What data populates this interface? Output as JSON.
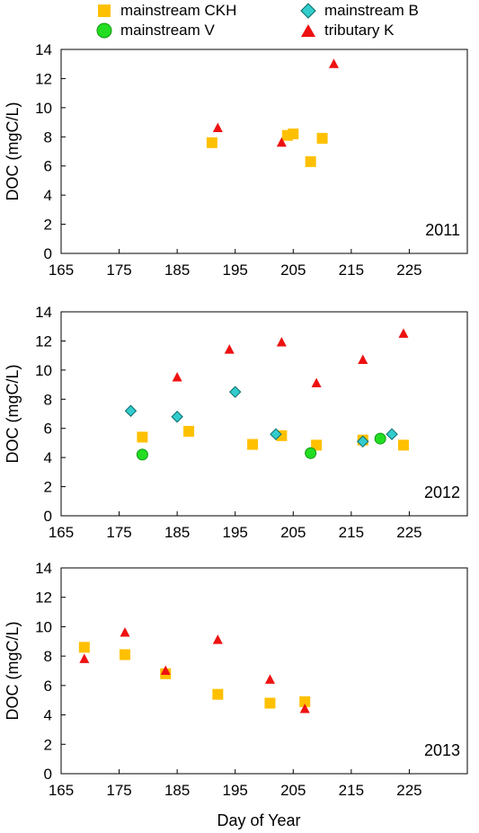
{
  "legend": [
    {
      "name": "mainstream CKH",
      "marker": "square",
      "color": "#FFC000"
    },
    {
      "name": "mainstream B",
      "marker": "diamond",
      "color": "#33CCCC"
    },
    {
      "name": "mainstream V",
      "marker": "circle",
      "color": "#22DD22"
    },
    {
      "name": "tributary K",
      "marker": "triangle",
      "color": "#EE1111"
    }
  ],
  "chart_data": [
    {
      "type": "scatter",
      "title": "",
      "annotation": "2011",
      "xlabel": "",
      "ylabel": "DOC (mgC/L)",
      "xlim": [
        165,
        235
      ],
      "ylim": [
        0,
        14
      ],
      "xticks": [
        165,
        175,
        185,
        195,
        205,
        215,
        225
      ],
      "yticks": [
        0,
        2,
        4,
        6,
        8,
        10,
        12,
        14
      ],
      "grid": false,
      "series": [
        {
          "name": "mainstream CKH",
          "x": [
            191,
            204,
            205,
            208,
            210
          ],
          "y": [
            7.6,
            8.1,
            8.2,
            6.3,
            7.9
          ]
        },
        {
          "name": "mainstream B",
          "x": [],
          "y": []
        },
        {
          "name": "mainstream V",
          "x": [],
          "y": []
        },
        {
          "name": "tributary K",
          "x": [
            192,
            203,
            212
          ],
          "y": [
            8.6,
            7.6,
            13.0
          ]
        }
      ]
    },
    {
      "type": "scatter",
      "title": "",
      "annotation": "2012",
      "xlabel": "",
      "ylabel": "DOC (mgC/L)",
      "xlim": [
        165,
        235
      ],
      "ylim": [
        0,
        14
      ],
      "xticks": [
        165,
        175,
        185,
        195,
        205,
        215,
        225
      ],
      "yticks": [
        0,
        2,
        4,
        6,
        8,
        10,
        12,
        14
      ],
      "grid": false,
      "series": [
        {
          "name": "mainstream CKH",
          "x": [
            179,
            187,
            198,
            203,
            209,
            217,
            224
          ],
          "y": [
            5.4,
            5.8,
            4.9,
            5.5,
            4.85,
            5.2,
            4.85
          ]
        },
        {
          "name": "mainstream B",
          "x": [
            177,
            185,
            195,
            202,
            217,
            222
          ],
          "y": [
            7.2,
            6.8,
            8.5,
            5.6,
            5.1,
            5.6
          ]
        },
        {
          "name": "mainstream V",
          "x": [
            179,
            208,
            220
          ],
          "y": [
            4.2,
            4.3,
            5.3
          ]
        },
        {
          "name": "tributary K",
          "x": [
            185,
            194,
            203,
            209,
            217,
            224
          ],
          "y": [
            9.5,
            11.4,
            11.9,
            9.1,
            10.7,
            12.5
          ]
        }
      ]
    },
    {
      "type": "scatter",
      "title": "",
      "annotation": "2013",
      "xlabel": "Day of Year",
      "ylabel": "DOC (mgC/L)",
      "xlim": [
        165,
        235
      ],
      "ylim": [
        0,
        14
      ],
      "xticks": [
        165,
        175,
        185,
        195,
        205,
        215,
        225
      ],
      "yticks": [
        0,
        2,
        4,
        6,
        8,
        10,
        12,
        14
      ],
      "grid": false,
      "series": [
        {
          "name": "mainstream CKH",
          "x": [
            169,
            176,
            183,
            192,
            201,
            207
          ],
          "y": [
            8.6,
            8.1,
            6.8,
            5.4,
            4.8,
            4.9
          ]
        },
        {
          "name": "mainstream B",
          "x": [],
          "y": []
        },
        {
          "name": "mainstream V",
          "x": [],
          "y": []
        },
        {
          "name": "tributary K",
          "x": [
            169,
            176,
            183,
            192,
            201,
            207
          ],
          "y": [
            7.8,
            9.6,
            7.0,
            9.1,
            6.4,
            4.4
          ]
        }
      ]
    }
  ]
}
